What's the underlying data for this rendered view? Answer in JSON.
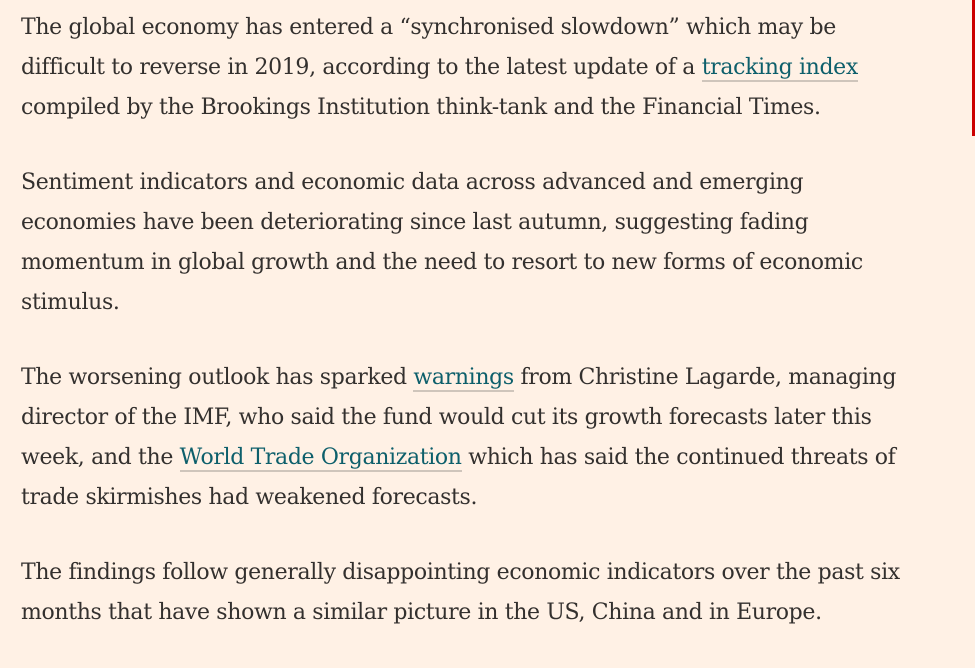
{
  "article": {
    "p1": {
      "before": "The global economy has entered a “synchronised slowdown” which may be difficult to reverse in 2019, according to the latest update of a ",
      "link": "tracking index",
      "after": " compiled by the Brookings Institution think-tank and the Financial Times."
    },
    "p2": {
      "text": "Sentiment indicators and economic data across advanced and emerging economies have been deteriorating since last autumn, suggesting fading momentum in global growth and the need to resort to new forms of economic stimulus."
    },
    "p3": {
      "before": "The worsening outlook has sparked ",
      "link1": "warnings",
      "middle": " from Christine Lagarde, managing director of the IMF, who said the fund would cut its growth forecasts later this week, and the ",
      "link2": "World Trade Organization",
      "after": " which has said the continued threats of trade skirmishes had weakened forecasts."
    },
    "p4": {
      "text": "The findings follow generally disappointing economic indicators over the past six months that have shown a similar picture in the US, China and in Europe."
    }
  },
  "colors": {
    "background": "#fff1e5",
    "text": "#33302e",
    "link": "#0d5f6b",
    "scroll_indicator": "#cc0000"
  }
}
